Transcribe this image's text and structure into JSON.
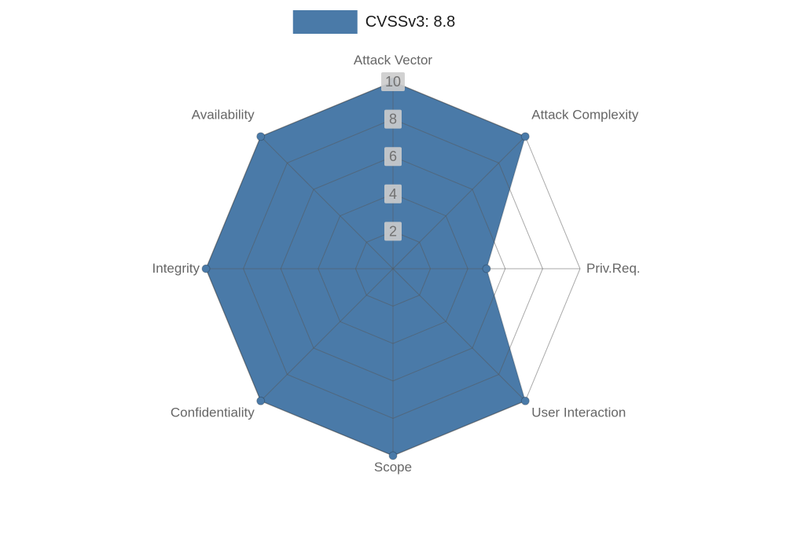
{
  "page": {
    "background_color": "#ffffff"
  },
  "legend": {
    "label": "CVSSv3: 8.8",
    "swatch_color": "#4a7aa8"
  },
  "chart_data": {
    "type": "radar",
    "title": "CVSSv3: 8.8",
    "categories": [
      "Attack Vector",
      "Attack Complexity",
      "Priv.Req.",
      "User Interaction",
      "Scope",
      "Confidentiality",
      "Integrity",
      "Availability"
    ],
    "series": [
      {
        "name": "CVSSv3: 8.8",
        "values": [
          10,
          10,
          5,
          10,
          10,
          10,
          10,
          10
        ]
      }
    ],
    "ticks": [
      2,
      4,
      6,
      8,
      10
    ],
    "rmax": 10,
    "legend_position": "top",
    "grid": true,
    "fill_color": "#4a7aa8",
    "grid_color": "rgba(85,85,85,0.5)",
    "outline_color": "rgba(0,0,0,0.18)",
    "label_color": "#666666",
    "tick_text_color": "#707070",
    "tick_box_color": "#cccccc"
  }
}
